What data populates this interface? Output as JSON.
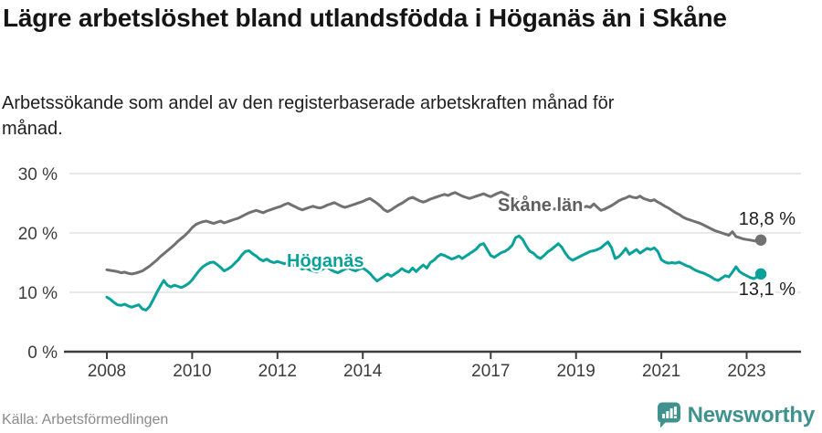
{
  "header": {
    "title": "Lägre arbetslöshet bland utlandsfödda i Höganäs än i Skåne",
    "subtitle": "Arbetssökande som andel av den registerbaserade arbetskraften månad för månad."
  },
  "footer": {
    "source": "Källa: Arbetsförmedlingen",
    "brand": "Newsworthy",
    "brand_icon": "newsworthy-speech-bubble-bar-chart-icon"
  },
  "colors": {
    "title": "#151515",
    "subtitle": "#202020",
    "axis": "#3d3d3d",
    "grid": "#dcdcdc",
    "tick_label": "#3c3c3c",
    "end_label": "#1e1e1e",
    "source": "#8a8a8a",
    "brand_teal": "#3f928d",
    "skane_gray": "#717171",
    "skane_label_gray": "#5e5e5e",
    "hoganas_teal": "#09a29a"
  },
  "chart_data": {
    "type": "line",
    "x_unit": "month",
    "x_start": "2008-01",
    "x_end": "2023-05",
    "ylim": [
      0,
      30
    ],
    "grid": "horizontal",
    "legend_position": "inline-labels",
    "yticks": [
      {
        "value": 0,
        "label": "0 %"
      },
      {
        "value": 10,
        "label": "10 %"
      },
      {
        "value": 20,
        "label": "20 %"
      },
      {
        "value": 30,
        "label": "30 %"
      }
    ],
    "xticks": [
      {
        "year": 2008,
        "label": "2008"
      },
      {
        "year": 2010,
        "label": "2010"
      },
      {
        "year": 2012,
        "label": "2012"
      },
      {
        "year": 2014,
        "label": "2014"
      },
      {
        "year": 2017,
        "label": "2017"
      },
      {
        "year": 2019,
        "label": "2019"
      },
      {
        "year": 2021,
        "label": "2021"
      },
      {
        "year": 2023,
        "label": "2023"
      }
    ],
    "series": [
      {
        "name": "Skåne län",
        "color": "#717171",
        "label_color": "#5e5e5e",
        "end_label": "18,8 %",
        "end_value": 18.8,
        "values": [
          13.8,
          13.7,
          13.6,
          13.5,
          13.3,
          13.4,
          13.2,
          13.1,
          13.2,
          13.4,
          13.6,
          14.0,
          14.4,
          14.9,
          15.4,
          16.0,
          16.5,
          17.0,
          17.5,
          18.0,
          18.6,
          19.1,
          19.6,
          20.2,
          20.9,
          21.4,
          21.7,
          21.9,
          22.0,
          21.8,
          21.6,
          21.8,
          22.0,
          21.7,
          21.9,
          22.1,
          22.3,
          22.5,
          22.8,
          23.1,
          23.4,
          23.6,
          23.8,
          23.6,
          23.4,
          23.7,
          23.9,
          24.1,
          24.3,
          24.5,
          24.8,
          25.0,
          24.7,
          24.4,
          24.1,
          23.9,
          24.1,
          24.3,
          24.5,
          24.3,
          24.2,
          24.4,
          24.7,
          24.9,
          25.1,
          24.8,
          24.5,
          24.3,
          24.5,
          24.7,
          24.9,
          25.1,
          25.3,
          25.6,
          25.8,
          25.4,
          25.0,
          24.5,
          23.9,
          23.6,
          23.9,
          24.3,
          24.7,
          25.0,
          25.4,
          25.8,
          26.0,
          25.7,
          25.4,
          25.2,
          25.4,
          25.7,
          25.9,
          26.1,
          26.3,
          26.5,
          26.3,
          26.6,
          26.8,
          26.5,
          26.2,
          26.0,
          25.8,
          26.0,
          26.2,
          26.4,
          26.6,
          26.3,
          26.1,
          26.4,
          26.7,
          26.9,
          26.6,
          26.3,
          26.0,
          25.7,
          25.4,
          25.6,
          25.3,
          25.0,
          24.8,
          25.0,
          25.2,
          24.9,
          24.6,
          24.3,
          24.0,
          24.2,
          24.4,
          24.1,
          23.9,
          23.7,
          23.9,
          24.1,
          24.3,
          24.5,
          24.3,
          24.9,
          24.3,
          23.8,
          24.0,
          24.3,
          24.6,
          25.0,
          25.4,
          25.7,
          25.9,
          26.2,
          26.0,
          25.9,
          26.2,
          25.8,
          25.6,
          25.4,
          25.6,
          25.2,
          24.9,
          24.5,
          24.2,
          23.8,
          23.4,
          23.1,
          22.7,
          22.4,
          22.2,
          22.0,
          21.8,
          21.6,
          21.3,
          21.0,
          20.7,
          20.4,
          20.2,
          20.0,
          19.8,
          19.6,
          20.2,
          19.4,
          19.2,
          19.0,
          18.9,
          18.8,
          18.7,
          18.6,
          18.8
        ]
      },
      {
        "name": "Höganäs",
        "color": "#09a29a",
        "label_color": "#09a29a",
        "end_label": "13,1 %",
        "end_value": 13.1,
        "values": [
          9.2,
          8.8,
          8.3,
          7.9,
          7.8,
          8.0,
          7.7,
          7.5,
          7.7,
          7.9,
          7.2,
          7.0,
          7.6,
          8.7,
          9.9,
          11.0,
          12.0,
          11.2,
          10.9,
          11.2,
          11.0,
          10.8,
          11.1,
          11.5,
          12.1,
          12.9,
          13.7,
          14.3,
          14.7,
          15.0,
          15.1,
          14.7,
          14.2,
          13.6,
          13.9,
          14.3,
          14.9,
          15.5,
          16.3,
          16.9,
          17.0,
          16.5,
          16.1,
          15.6,
          15.3,
          15.6,
          15.2,
          15.0,
          15.2,
          15.0,
          14.8,
          15.1,
          14.7,
          14.4,
          14.2,
          13.9,
          14.1,
          13.8,
          13.6,
          13.4,
          13.7,
          14.0,
          14.2,
          13.8,
          13.5,
          13.3,
          13.6,
          13.9,
          14.1,
          13.8,
          13.6,
          13.9,
          14.1,
          13.7,
          13.2,
          12.5,
          11.9,
          12.3,
          12.7,
          13.1,
          12.7,
          13.1,
          13.5,
          14.0,
          13.6,
          13.4,
          14.1,
          13.5,
          14.1,
          14.6,
          14.1,
          15.0,
          15.4,
          16.0,
          16.4,
          16.2,
          15.9,
          15.6,
          15.8,
          16.1,
          15.7,
          16.1,
          16.5,
          16.9,
          17.3,
          18.0,
          18.2,
          17.2,
          16.2,
          15.9,
          16.3,
          16.7,
          16.9,
          17.3,
          17.9,
          19.2,
          19.5,
          18.9,
          17.8,
          16.9,
          16.6,
          16.0,
          15.7,
          16.2,
          16.8,
          17.2,
          17.7,
          18.2,
          17.6,
          16.6,
          15.8,
          15.4,
          15.7,
          16.0,
          16.3,
          16.6,
          16.9,
          17.0,
          17.2,
          17.5,
          18.0,
          18.5,
          17.5,
          15.7,
          16.0,
          16.6,
          17.4,
          16.4,
          16.8,
          17.2,
          16.6,
          17.0,
          17.4,
          17.2,
          17.5,
          16.9,
          15.5,
          15.1,
          14.9,
          15.0,
          14.9,
          15.1,
          14.8,
          14.5,
          14.3,
          13.9,
          13.6,
          13.4,
          13.2,
          12.9,
          12.6,
          12.2,
          12.0,
          12.4,
          12.8,
          12.6,
          13.4,
          14.3,
          13.5,
          13.1,
          12.8,
          12.5,
          12.3,
          12.6,
          13.1
        ]
      }
    ]
  }
}
